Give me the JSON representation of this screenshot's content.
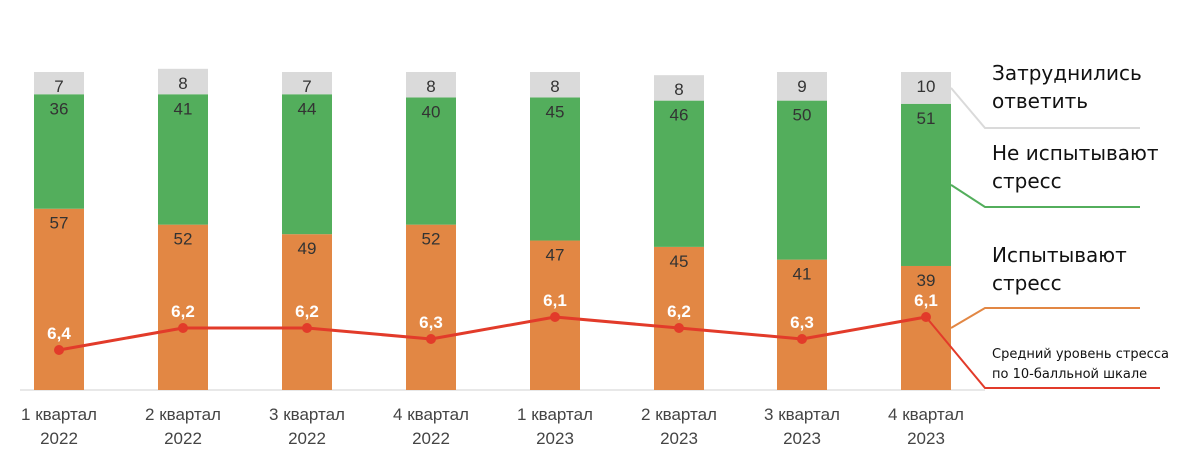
{
  "chart_data": {
    "type": "bar",
    "stacked": true,
    "categories": [
      [
        "1 квартал",
        "2022"
      ],
      [
        "2 квартал",
        "2022"
      ],
      [
        "3 квартал",
        "2022"
      ],
      [
        "4 квартал",
        "2022"
      ],
      [
        "1 квартал",
        "2023"
      ],
      [
        "2 квартал",
        "2023"
      ],
      [
        "3 квартал",
        "2023"
      ],
      [
        "4 квартал",
        "2023"
      ]
    ],
    "series": [
      {
        "name": "Испытывают стресс",
        "legend": [
          "Испытывают",
          "стресс"
        ],
        "color": "#E28744",
        "values": [
          57,
          52,
          49,
          52,
          47,
          45,
          41,
          39
        ]
      },
      {
        "name": "Не испытывают стресс",
        "legend": [
          "Не испытывают",
          "стресс"
        ],
        "color": "#53AE5C",
        "values": [
          36,
          41,
          44,
          40,
          45,
          46,
          50,
          51
        ]
      },
      {
        "name": "Затруднились ответить",
        "legend": [
          "Затруднились",
          "ответить"
        ],
        "color": "#DADADA",
        "values": [
          7,
          8,
          7,
          8,
          8,
          8,
          9,
          10
        ]
      }
    ],
    "line": {
      "name": "Средний уровень стресса по 10-балльной шкале",
      "legend": [
        "Средний уровень стресса",
        "по 10-балльной шкале"
      ],
      "color": "#E23B2A",
      "values": [
        6.4,
        6.2,
        6.2,
        6.3,
        6.1,
        6.2,
        6.3,
        6.1
      ],
      "labels": [
        "6,4",
        "6,2",
        "6,2",
        "6,3",
        "6,1",
        "6,2",
        "6,3",
        "6,1"
      ]
    },
    "ylim": [
      0,
      100
    ],
    "grid": false,
    "legend_position": "right"
  }
}
